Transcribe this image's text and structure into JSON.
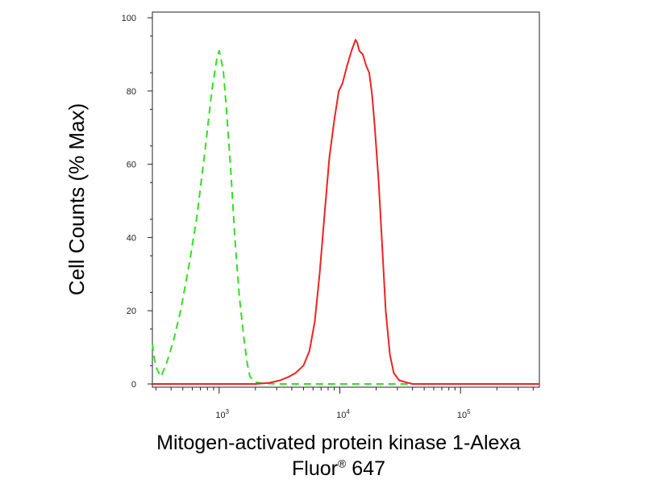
{
  "chart_data": {
    "type": "line",
    "xscale": "log",
    "xlim": [
      280,
      450000
    ],
    "ylim": [
      0,
      100
    ],
    "ylabel": "Cell Counts (% Max)",
    "xlabel_line1": "Mitogen-activated protein kinase 1-Alexa",
    "xlabel_line2_prefix": "Fluor",
    "xlabel_line2_symbol": "®",
    "xlabel_line2_suffix": " 647",
    "y_ticks": [
      0,
      20,
      40,
      60,
      80,
      100
    ],
    "y_tick_labels": [
      "0",
      "20",
      "40",
      "60",
      "80",
      "100"
    ],
    "x_decades": [
      {
        "value": 1000,
        "base": "10",
        "exp": "3"
      },
      {
        "value": 10000,
        "base": "10",
        "exp": "4"
      },
      {
        "value": 100000,
        "base": "10",
        "exp": "5"
      }
    ],
    "grid": false,
    "series": [
      {
        "style": "dashed",
        "color": "#33dd22",
        "x": [
          280,
          290,
          305,
          330,
          370,
          420,
          480,
          560,
          650,
          760,
          870,
          960,
          1000,
          1080,
          1150,
          1250,
          1350,
          1470,
          1600,
          1700,
          1800,
          2000,
          2300,
          3000,
          5000,
          10000,
          20000,
          50000,
          100000,
          450000
        ],
        "y": [
          11,
          7,
          4,
          2,
          6,
          12,
          20,
          32,
          45,
          63,
          80,
          89,
          91,
          86,
          75,
          58,
          40,
          24,
          13,
          6,
          2,
          0.5,
          0.2,
          0,
          0,
          0,
          0,
          0,
          0,
          0
        ]
      },
      {
        "style": "solid",
        "color": "#ee2222",
        "x": [
          280,
          1000,
          2000,
          2600,
          3200,
          3800,
          4300,
          5000,
          5600,
          6200,
          6800,
          7500,
          8200,
          9000,
          9800,
          10500,
          11500,
          12500,
          13500,
          14000,
          14500,
          15500,
          16500,
          17500,
          18500,
          19500,
          21000,
          22500,
          24000,
          26000,
          28000,
          31000,
          35000,
          40000,
          60000,
          100000,
          450000
        ],
        "y": [
          0,
          0,
          0,
          0.3,
          1,
          2,
          3,
          5,
          9,
          17,
          30,
          47,
          62,
          72,
          80,
          82,
          87,
          91,
          94,
          93,
          91,
          90,
          87,
          85,
          79,
          70,
          55,
          37,
          20,
          8,
          3,
          1,
          0.5,
          0,
          0,
          0,
          0
        ]
      }
    ]
  }
}
